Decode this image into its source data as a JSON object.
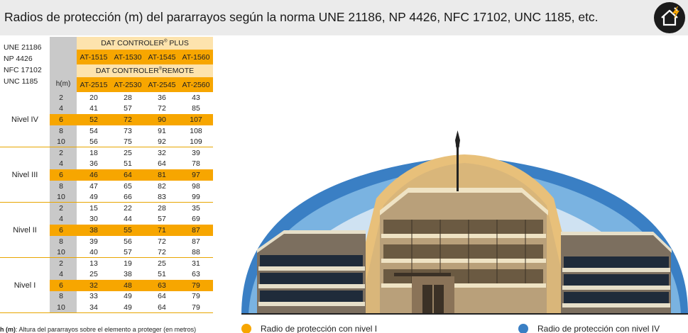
{
  "header": {
    "title": "Radios de protección (m) del pararrayos según la norma UNE 21186, NP 4426, NFC 17102, UNC 1185, etc.",
    "logo_icon": "house-lightning-icon"
  },
  "table": {
    "norms": [
      "UNE 21186",
      "NP 4426",
      "NFC 17102",
      "UNC 1185"
    ],
    "h_label": "h(m)",
    "plus_label": "DAT CONTROLER",
    "plus_suffix": "PLUS",
    "plus_models": [
      "AT-1515",
      "AT-1530",
      "AT-1545",
      "AT-1560"
    ],
    "remote_label": "DAT CONTROLER",
    "remote_suffix": "REMOTE",
    "remote_models": [
      "AT-2515",
      "AT-2530",
      "AT-2545",
      "AT-2560"
    ],
    "reg": "®",
    "groups": [
      {
        "nivel": "Nivel IV",
        "rows": [
          {
            "h": "2",
            "v": [
              "20",
              "28",
              "36",
              "43"
            ]
          },
          {
            "h": "4",
            "v": [
              "41",
              "57",
              "72",
              "85"
            ]
          },
          {
            "h": "6",
            "v": [
              "52",
              "72",
              "90",
              "107"
            ]
          },
          {
            "h": "8",
            "v": [
              "54",
              "73",
              "91",
              "108"
            ]
          },
          {
            "h": "10",
            "v": [
              "56",
              "75",
              "92",
              "109"
            ]
          }
        ]
      },
      {
        "nivel": "Nivel III",
        "rows": [
          {
            "h": "2",
            "v": [
              "18",
              "25",
              "32",
              "39"
            ]
          },
          {
            "h": "4",
            "v": [
              "36",
              "51",
              "64",
              "78"
            ]
          },
          {
            "h": "6",
            "v": [
              "46",
              "64",
              "81",
              "97"
            ]
          },
          {
            "h": "8",
            "v": [
              "47",
              "65",
              "82",
              "98"
            ]
          },
          {
            "h": "10",
            "v": [
              "49",
              "66",
              "83",
              "99"
            ]
          }
        ]
      },
      {
        "nivel": "Nivel II",
        "rows": [
          {
            "h": "2",
            "v": [
              "15",
              "22",
              "28",
              "35"
            ]
          },
          {
            "h": "4",
            "v": [
              "30",
              "44",
              "57",
              "69"
            ]
          },
          {
            "h": "6",
            "v": [
              "38",
              "55",
              "71",
              "87"
            ]
          },
          {
            "h": "8",
            "v": [
              "39",
              "56",
              "72",
              "87"
            ]
          },
          {
            "h": "10",
            "v": [
              "40",
              "57",
              "72",
              "88"
            ]
          }
        ]
      },
      {
        "nivel": "Nivel I",
        "rows": [
          {
            "h": "2",
            "v": [
              "13",
              "19",
              "25",
              "31"
            ]
          },
          {
            "h": "4",
            "v": [
              "25",
              "38",
              "51",
              "63"
            ]
          },
          {
            "h": "6",
            "v": [
              "32",
              "48",
              "63",
              "79"
            ]
          },
          {
            "h": "8",
            "v": [
              "33",
              "49",
              "64",
              "79"
            ]
          },
          {
            "h": "10",
            "v": [
              "34",
              "49",
              "64",
              "79"
            ]
          }
        ]
      }
    ]
  },
  "footnote": {
    "bold": "h (m)",
    "text": ": Altura del pararrayos sobre el elemento a proteger (en metros)"
  },
  "legend": {
    "nivel1_label": "Radio de protección con nivel I",
    "nivel4_label": "Radio de protección con nivel IV",
    "nivel1_color": "#f7a600",
    "nivel4_color": "#3a7fc4"
  },
  "illustration": {
    "icon": "building-with-lightning-rod-illustration"
  }
}
